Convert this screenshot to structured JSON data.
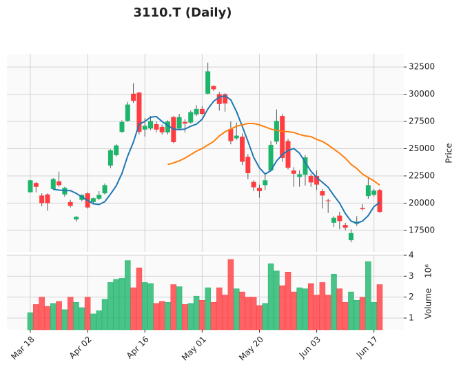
{
  "chart_data": {
    "type": "candlestick",
    "title": "3110.T (Daily)",
    "categories": [
      "Mar 18",
      null,
      null,
      null,
      null,
      null,
      null,
      null,
      null,
      null,
      "Apr 02",
      null,
      null,
      null,
      null,
      null,
      null,
      null,
      null,
      null,
      "Apr 16",
      null,
      null,
      null,
      null,
      null,
      null,
      null,
      null,
      null,
      "May 01",
      null,
      null,
      null,
      null,
      null,
      null,
      null,
      null,
      null,
      "May 20",
      null,
      null,
      null,
      null,
      null,
      null,
      null,
      null,
      null,
      "Jun 03",
      null,
      null,
      null,
      null,
      null,
      null,
      null,
      null,
      null,
      "Jun 17",
      null
    ],
    "open": [
      21000,
      21850,
      20700,
      20800,
      21300,
      22000,
      20800,
      20100,
      18500,
      20300,
      20900,
      20100,
      20400,
      20900,
      23450,
      24400,
      26550,
      27550,
      30050,
      30150,
      26750,
      26850,
      27250,
      27000,
      26500,
      27900,
      26850,
      27450,
      27400,
      28150,
      28650,
      30050,
      30750,
      30000,
      30000,
      26800,
      25950,
      26100,
      24250,
      21950,
      21400,
      21650,
      23000,
      25650,
      28000,
      25700,
      23000,
      22400,
      22600,
      22500,
      22500,
      21100,
      20250,
      18200,
      18850,
      18000,
      16600,
      18100,
      19550,
      20650,
      20750,
      21200
    ],
    "high": [
      22150,
      21950,
      20900,
      20900,
      22300,
      22900,
      21500,
      20300,
      18800,
      20800,
      21000,
      20500,
      21100,
      21800,
      24950,
      25400,
      27600,
      29300,
      31000,
      30200,
      27800,
      28000,
      27500,
      27200,
      27600,
      28000,
      28200,
      27700,
      28500,
      29000,
      28900,
      32900,
      30800,
      30200,
      30100,
      27500,
      27400,
      26400,
      24500,
      22100,
      21700,
      22600,
      25700,
      28600,
      28200,
      25900,
      23300,
      23000,
      24400,
      22700,
      23000,
      21300,
      20400,
      18800,
      19200,
      18200,
      17600,
      18800,
      19900,
      22400,
      21300,
      21300
    ],
    "low": [
      20950,
      21000,
      19700,
      19300,
      21200,
      21500,
      20600,
      19600,
      18300,
      20150,
      19500,
      19900,
      20300,
      20800,
      23200,
      24300,
      26450,
      27450,
      29200,
      26300,
      26100,
      26700,
      26500,
      26300,
      26300,
      25500,
      26700,
      26500,
      27300,
      28000,
      28100,
      30000,
      30300,
      28500,
      28400,
      25400,
      25800,
      23500,
      22200,
      21100,
      20500,
      21200,
      22900,
      25400,
      23800,
      23100,
      21500,
      21500,
      21600,
      21500,
      21200,
      19500,
      19100,
      17800,
      17600,
      17500,
      16400,
      17900,
      19300,
      20400,
      20600,
      19100
    ],
    "close": [
      22100,
      21500,
      20000,
      20000,
      22200,
      21650,
      21400,
      19750,
      18750,
      20750,
      19600,
      20450,
      20750,
      21650,
      24850,
      25300,
      27450,
      29050,
      29400,
      26550,
      27100,
      27550,
      26750,
      26500,
      27500,
      25600,
      27900,
      27300,
      28350,
      28650,
      28200,
      32100,
      30450,
      29100,
      29150,
      25700,
      26200,
      23800,
      22750,
      21450,
      21100,
      22100,
      25350,
      27550,
      24150,
      23250,
      22700,
      22650,
      24200,
      21900,
      21700,
      20700,
      20200,
      18650,
      18350,
      17750,
      17250,
      18300,
      19450,
      21650,
      21150,
      19200
    ],
    "up_color": "#1db56b",
    "down_color": "#ff3c40",
    "moving_averages": [
      {
        "color": "#1f77b4",
        "values": [
          null,
          null,
          null,
          null,
          21270,
          21200,
          21150,
          21150,
          20900,
          20570,
          20250,
          19940,
          19870,
          20130,
          20830,
          21590,
          22730,
          24320,
          25600,
          27250,
          27500,
          27890,
          27950,
          27500,
          27120,
          26800,
          26740,
          26800,
          27060,
          27250,
          27700,
          28650,
          29350,
          29730,
          29860,
          29480,
          28400,
          27060,
          25660,
          24200,
          23240,
          22670,
          22990,
          23880,
          24450,
          24830,
          25020,
          24580,
          23750,
          22930,
          22350,
          21910,
          21460,
          20700,
          20000,
          19050,
          18350,
          18160,
          18350,
          18860,
          19680,
          20060
        ]
      },
      {
        "color": "#ff7f0e",
        "values": [
          null,
          null,
          null,
          null,
          null,
          null,
          null,
          null,
          null,
          null,
          null,
          null,
          null,
          null,
          null,
          null,
          null,
          null,
          null,
          null,
          null,
          null,
          null,
          null,
          23560,
          23690,
          23880,
          24130,
          24450,
          24770,
          25020,
          25340,
          25660,
          26170,
          26550,
          26800,
          27060,
          27190,
          27310,
          27310,
          27190,
          27000,
          26800,
          26680,
          26610,
          26550,
          26490,
          26300,
          26170,
          26110,
          25850,
          25660,
          25340,
          24960,
          24580,
          24130,
          23560,
          23180,
          22670,
          22350,
          22040,
          21650
        ]
      }
    ],
    "ylabel": "Price",
    "ylim": [
      15530,
      33710
    ],
    "yticks": [
      17500,
      20000,
      22500,
      25000,
      27500,
      30000,
      32500
    ],
    "grid": true,
    "volume": {
      "ylabel": "Volume",
      "offset_label": "10⁶",
      "values": [
        1.26,
        1.65,
        2.0,
        1.56,
        1.7,
        1.8,
        1.4,
        2.0,
        1.75,
        1.5,
        2.0,
        1.2,
        1.35,
        1.9,
        2.7,
        2.85,
        2.9,
        3.75,
        2.45,
        3.4,
        2.7,
        2.65,
        1.7,
        1.8,
        1.75,
        2.6,
        2.5,
        1.65,
        1.7,
        2.05,
        1.85,
        2.45,
        1.75,
        2.45,
        2.1,
        3.8,
        2.4,
        2.25,
        2.0,
        2.0,
        1.6,
        1.7,
        3.6,
        3.25,
        2.55,
        3.2,
        2.25,
        2.45,
        2.4,
        2.65,
        2.1,
        2.7,
        2.1,
        3.1,
        2.4,
        1.75,
        2.25,
        1.85,
        2.0,
        3.7,
        1.75,
        2.6
      ],
      "ylim": [
        0.44,
        4.0
      ],
      "yticks": [
        1,
        2,
        3,
        4
      ]
    }
  }
}
